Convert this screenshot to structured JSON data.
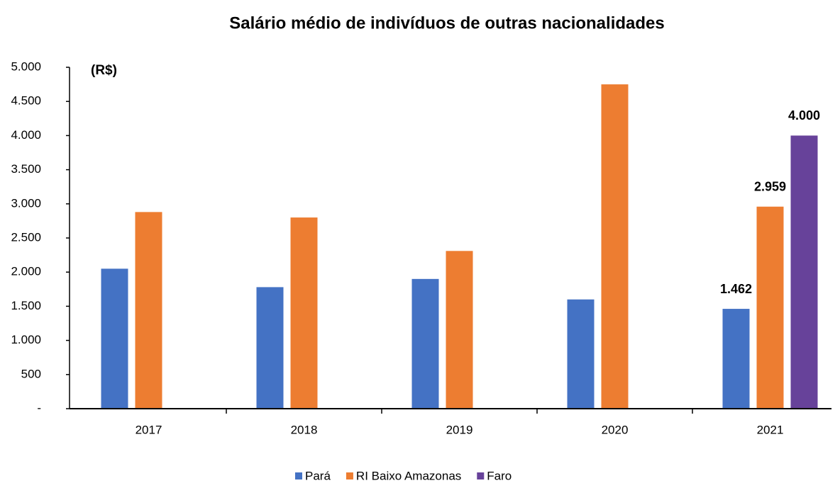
{
  "chart_data": {
    "type": "bar",
    "title": "Salário médio de indivíduos de outras nacionalidades",
    "y_label": "(R$)",
    "categories": [
      "2017",
      "2018",
      "2019",
      "2020",
      "2021"
    ],
    "series": [
      {
        "name": "Pará",
        "color": "#4472c4",
        "values": [
          2050,
          1780,
          1900,
          1600,
          1462
        ],
        "value_labels": [
          null,
          null,
          null,
          null,
          "1.462"
        ]
      },
      {
        "name": "RI Baixo Amazonas",
        "color": "#ed7d31",
        "values": [
          2880,
          2800,
          2310,
          4750,
          2959
        ],
        "value_labels": [
          null,
          null,
          null,
          null,
          "2.959"
        ]
      },
      {
        "name": "Faro",
        "color": "#67429a",
        "values": [
          null,
          null,
          null,
          null,
          4000
        ],
        "value_labels": [
          null,
          null,
          null,
          null,
          "4.000"
        ]
      }
    ],
    "ylim": [
      0,
      5000
    ],
    "yticks": [
      {
        "value": 0,
        "label": "-"
      },
      500,
      {
        "value": 1000,
        "label": "1.000"
      },
      {
        "value": 1500,
        "label": "1.500"
      },
      {
        "value": 2000,
        "label": "2.000"
      },
      {
        "value": 2500,
        "label": "2.500"
      },
      {
        "value": 3000,
        "label": "3.000"
      },
      {
        "value": 3500,
        "label": "3.500"
      },
      {
        "value": 4000,
        "label": "4.000"
      },
      {
        "value": 4500,
        "label": "4.500"
      },
      {
        "value": 5000,
        "label": "5.000"
      }
    ],
    "grid": false,
    "legend": "bottom"
  }
}
